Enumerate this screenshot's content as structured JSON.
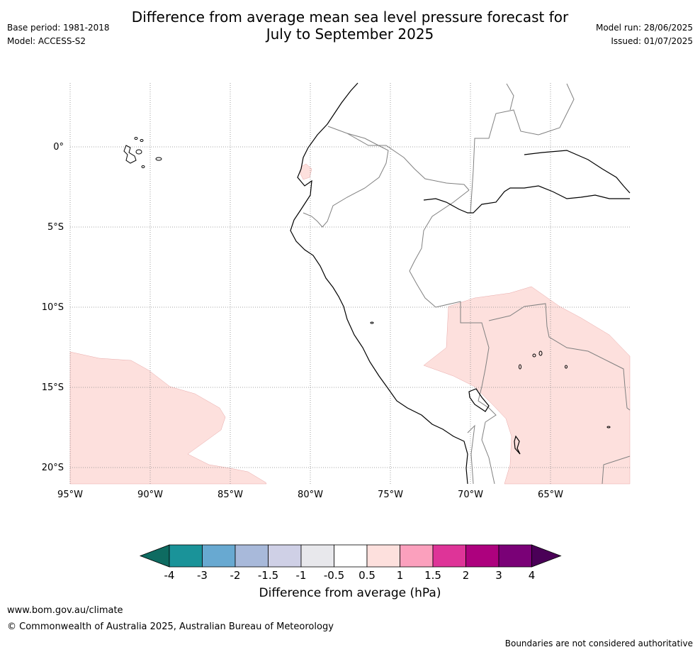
{
  "header": {
    "title_line1": "Difference from average mean sea level pressure forecast for",
    "title_line2": "July to September 2025",
    "base_period": "Base period: 1981-2018",
    "model": "Model: ACCESS-S2",
    "model_run": "Model run: 28/06/2025",
    "issued": "Issued: 01/07/2025"
  },
  "map": {
    "lat_labels": [
      "0°",
      "5°S",
      "10°S",
      "15°S",
      "20°S"
    ],
    "lon_labels": [
      "95°W",
      "90°W",
      "85°W",
      "80°W",
      "75°W",
      "70°W",
      "65°W"
    ],
    "anomaly_class_shown": "0.5 to 1",
    "anomaly_fill_color": "#fde0dd",
    "coastline_color": "#000000",
    "border_color": "#808080",
    "gridlines": "dotted"
  },
  "colorbar": {
    "title": "Difference from average (hPa)",
    "tick_labels": [
      "-4",
      "-3",
      "-2",
      "-1.5",
      "-1",
      "-0.5",
      "0.5",
      "1",
      "1.5",
      "2",
      "3",
      "4"
    ],
    "colors": [
      "#0e6b61",
      "#1a9399",
      "#68a9d1",
      "#a8b9da",
      "#cfd0e6",
      "#e8e8ec",
      "#ffffff",
      "#fde0dd",
      "#fba0bd",
      "#de3498",
      "#ad017e",
      "#7a0177",
      "#4a0057"
    ],
    "extend": "both"
  },
  "footer": {
    "url": "www.bom.gov.au/climate",
    "copyright": "© Commonwealth of Australia 2025, Australian Bureau of Meteorology",
    "disclaimer": "Boundaries are not considered authoritative"
  }
}
